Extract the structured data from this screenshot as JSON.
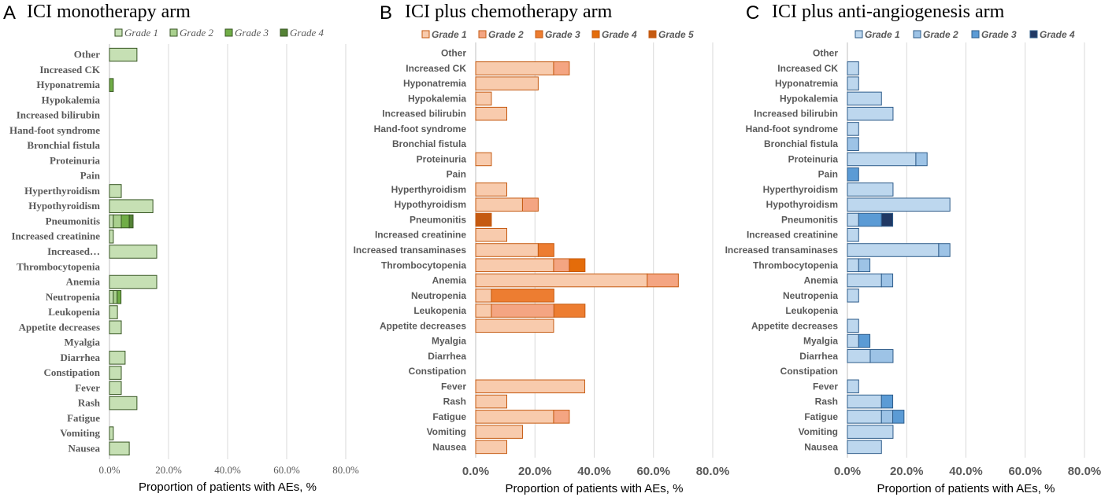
{
  "chart_data": [
    {
      "type": "bar",
      "stacked": true,
      "orientation": "horizontal",
      "panel_letter": "A",
      "title": "ICI monotherapy arm",
      "xlabel": "Proportion of patients with AEs, %",
      "ylabel": "",
      "xlim": [
        0,
        80
      ],
      "x_ticks": [
        "0.0%",
        "20.0%",
        "40.0%",
        "60.0%",
        "80.0%"
      ],
      "legend": [
        "Grade 1",
        "Grade 2",
        "Grade 3",
        "Grade 4"
      ],
      "colors": {
        "fill": [
          "#c6e0b4",
          "#a9d08e",
          "#70ad47",
          "#548235"
        ],
        "stroke": "#375623"
      },
      "categories": [
        "Other",
        "Increased CK",
        "Hyponatremia",
        "Hypokalemia",
        "Increased bilirubin",
        "Hand-foot syndrome",
        "Bronchial fistula",
        "Proteinuria",
        "Pain",
        "Hyperthyroidism",
        "Hypothyroidism",
        "Pneumonitis",
        "Increased creatinine",
        "Increased…",
        "Thrombocytopenia",
        "Anemia",
        "Neutropenia",
        "Leukopenia",
        "Appetite decreases",
        "Myalgia",
        "Diarrhea",
        "Constipation",
        "Fever",
        "Rash",
        "Fatigue",
        "Vomiting",
        "Nausea"
      ],
      "series": [
        {
          "name": "Grade 1",
          "values": [
            9.3,
            0,
            0,
            0,
            0,
            0,
            0,
            0,
            0,
            4.0,
            14.7,
            1.3,
            1.3,
            16.0,
            0,
            16.0,
            1.3,
            2.7,
            4.0,
            0,
            5.3,
            4.0,
            4.0,
            9.3,
            0,
            1.3,
            6.7
          ]
        },
        {
          "name": "Grade 2",
          "values": [
            0,
            0,
            0,
            0,
            0,
            0,
            0,
            0,
            0,
            0,
            0,
            2.7,
            0,
            0,
            0,
            0,
            1.3,
            0,
            0,
            0,
            0,
            0,
            0,
            0,
            0,
            0,
            0
          ]
        },
        {
          "name": "Grade 3",
          "values": [
            0,
            0,
            1.3,
            0,
            0,
            0,
            0,
            0,
            0,
            0,
            0,
            2.7,
            0,
            0,
            0,
            0,
            1.3,
            0,
            0,
            0,
            0,
            0,
            0,
            0,
            0,
            0,
            0
          ]
        },
        {
          "name": "Grade 4",
          "values": [
            0,
            0,
            0,
            0,
            0,
            0,
            0,
            0,
            0,
            0,
            0,
            1.3,
            0,
            0,
            0,
            0,
            0,
            0,
            0,
            0,
            0,
            0,
            0,
            0,
            0,
            0,
            0
          ]
        }
      ]
    },
    {
      "type": "bar",
      "stacked": true,
      "orientation": "horizontal",
      "panel_letter": "B",
      "title": "ICI plus chemotherapy arm",
      "xlabel": "Proportion of patients with AEs, %",
      "ylabel": "",
      "xlim": [
        0,
        80
      ],
      "x_ticks": [
        "0.0%",
        "20.0%",
        "40.0%",
        "60.0%",
        "80.0%"
      ],
      "legend": [
        "Grade 1",
        "Grade 2",
        "Grade 3",
        "Grade 4",
        "Grade 5"
      ],
      "colors": {
        "fill": [
          "#f8cbad",
          "#f4a582",
          "#ed7d31",
          "#e46c0a",
          "#c55a11"
        ],
        "stroke": "#c55a11"
      },
      "categories": [
        "Other",
        "Increased CK",
        "Hyponatremia",
        "Hypokalemia",
        "Increased bilirubin",
        "Hand-foot syndrome",
        "Bronchial fistula",
        "Proteinuria",
        "Pain",
        "Hyperthyroidism",
        "Hypothyroidism",
        "Pneumonitis",
        "Increased creatinine",
        "Increased transaminases",
        "Thrombocytopenia",
        "Anemia",
        "Neutropenia",
        "Leukopenia",
        "Appetite decreases",
        "Myalgia",
        "Diarrhea",
        "Constipation",
        "Fever",
        "Rash",
        "Fatigue",
        "Vomiting",
        "Nausea"
      ],
      "series": [
        {
          "name": "Grade 1",
          "values": [
            0,
            26.3,
            21.1,
            5.3,
            10.5,
            0,
            0,
            5.3,
            0,
            10.5,
            15.8,
            0,
            10.5,
            21.1,
            26.3,
            57.9,
            5.3,
            5.3,
            26.3,
            0,
            0,
            0,
            36.8,
            10.5,
            26.3,
            15.8,
            10.5
          ]
        },
        {
          "name": "Grade 2",
          "values": [
            0,
            5.3,
            0,
            0,
            0,
            0,
            0,
            0,
            0,
            0,
            5.3,
            0,
            0,
            0,
            5.3,
            10.5,
            0,
            21.1,
            0,
            0,
            0,
            0,
            0,
            0,
            5.3,
            0,
            0
          ]
        },
        {
          "name": "Grade 3",
          "values": [
            0,
            0,
            0,
            0,
            0,
            0,
            0,
            0,
            0,
            0,
            0,
            0,
            0,
            5.3,
            0,
            0,
            21.1,
            10.5,
            0,
            0,
            0,
            0,
            0,
            0,
            0,
            0,
            0
          ]
        },
        {
          "name": "Grade 4",
          "values": [
            0,
            0,
            0,
            0,
            0,
            0,
            0,
            0,
            0,
            0,
            0,
            0,
            0,
            0,
            5.3,
            0,
            0,
            0,
            0,
            0,
            0,
            0,
            0,
            0,
            0,
            0,
            0
          ]
        },
        {
          "name": "Grade 5",
          "values": [
            0,
            0,
            0,
            0,
            0,
            0,
            0,
            0,
            0,
            0,
            0,
            5.3,
            0,
            0,
            0,
            0,
            0,
            0,
            0,
            0,
            0,
            0,
            0,
            0,
            0,
            0,
            0
          ]
        }
      ]
    },
    {
      "type": "bar",
      "stacked": true,
      "orientation": "horizontal",
      "panel_letter": "C",
      "title": "ICI plus anti-angiogenesis arm",
      "xlabel": "Proportion of patients with AEs, %",
      "ylabel": "",
      "xlim": [
        0,
        80
      ],
      "x_ticks": [
        "0.0%",
        "20.0%",
        "40.0%",
        "60.0%",
        "80.0%"
      ],
      "legend": [
        "Grade 1",
        "Grade 2",
        "Grade 3",
        "Grade 4"
      ],
      "colors": {
        "fill": [
          "#bdd7ee",
          "#9dc3e6",
          "#5b9bd5",
          "#203864"
        ],
        "stroke": "#2e5c8a"
      },
      "categories": [
        "Other",
        "Increased CK",
        "Hyponatremia",
        "Hypokalemia",
        "Increased bilirubin",
        "Hand-foot syndrome",
        "Bronchial fistula",
        "Proteinuria",
        "Pain",
        "Hyperthyroidism",
        "Hypothyroidism",
        "Pneumonitis",
        "Increased creatinine",
        "Increased transaminases",
        "Thrombocytopenia",
        "Anemia",
        "Neutropenia",
        "Leukopenia",
        "Appetite decreases",
        "Myalgia",
        "Diarrhea",
        "Constipation",
        "Fever",
        "Rash",
        "Fatigue",
        "Vomiting",
        "Nausea"
      ],
      "series": [
        {
          "name": "Grade 1",
          "values": [
            0,
            3.8,
            3.8,
            11.5,
            15.4,
            3.8,
            0,
            23.1,
            0,
            15.4,
            34.6,
            3.8,
            3.8,
            30.8,
            3.8,
            11.5,
            3.8,
            0,
            3.8,
            3.8,
            7.7,
            0,
            3.8,
            11.5,
            11.5,
            15.4,
            11.5
          ]
        },
        {
          "name": "Grade 2",
          "values": [
            0,
            0,
            0,
            0,
            0,
            0,
            3.8,
            3.8,
            0,
            0,
            0,
            0,
            0,
            3.8,
            3.8,
            3.8,
            0,
            0,
            0,
            0,
            7.7,
            0,
            0,
            0,
            3.8,
            0,
            0
          ]
        },
        {
          "name": "Grade 3",
          "values": [
            0,
            0,
            0,
            0,
            0,
            0,
            0,
            0,
            3.8,
            0,
            0,
            7.7,
            0,
            0,
            0,
            0,
            0,
            0,
            0,
            3.8,
            0,
            0,
            0,
            3.8,
            3.8,
            0,
            0
          ]
        },
        {
          "name": "Grade 4",
          "values": [
            0,
            0,
            0,
            0,
            0,
            0,
            0,
            0,
            0,
            0,
            0,
            3.8,
            0,
            0,
            0,
            0,
            0,
            0,
            0,
            0,
            0,
            0,
            0,
            0,
            0,
            0,
            0
          ]
        }
      ]
    }
  ]
}
